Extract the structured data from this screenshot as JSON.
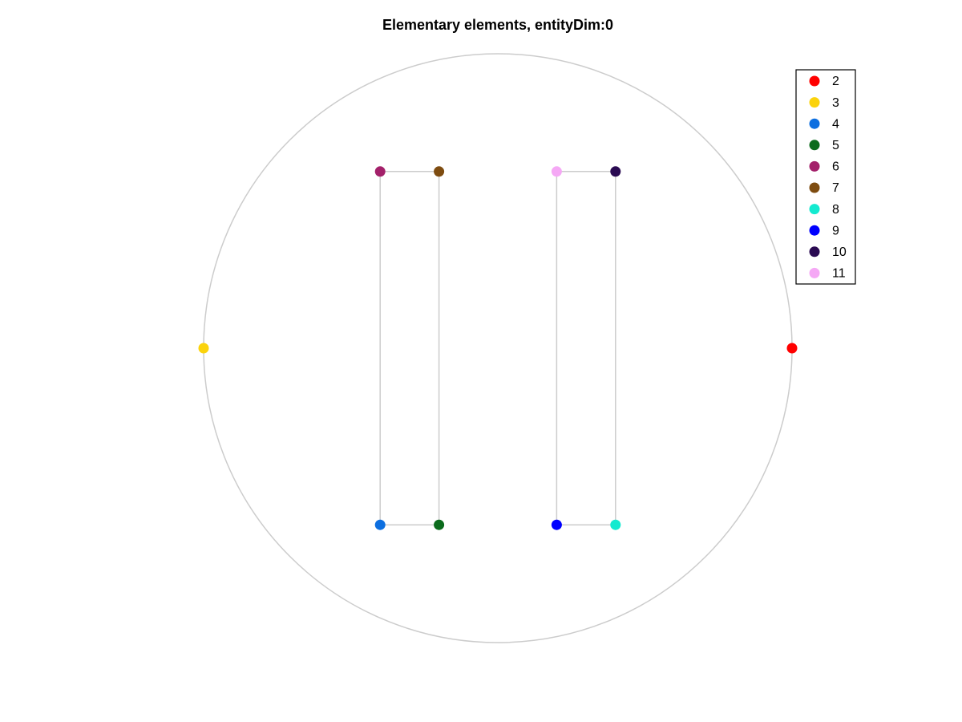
{
  "chart_data": {
    "type": "scatter",
    "title": "Elementary elements, entityDim:0",
    "series": [
      {
        "name": "2",
        "color": "#ff0000",
        "x": [
          1
        ],
        "values": [
          0
        ]
      },
      {
        "name": "3",
        "color": "#fbd30c",
        "x": [
          -1
        ],
        "values": [
          0
        ]
      },
      {
        "name": "4",
        "color": "#0d6fe0",
        "x": [
          -0.4
        ],
        "values": [
          -0.6
        ]
      },
      {
        "name": "5",
        "color": "#0b6b1c",
        "x": [
          -0.2
        ],
        "values": [
          -0.6
        ]
      },
      {
        "name": "6",
        "color": "#a3206a",
        "x": [
          -0.4
        ],
        "values": [
          0.6
        ]
      },
      {
        "name": "7",
        "color": "#7e4c10",
        "x": [
          -0.2
        ],
        "values": [
          0.6
        ]
      },
      {
        "name": "8",
        "color": "#14ead0",
        "x": [
          0.4
        ],
        "values": [
          -0.6
        ]
      },
      {
        "name": "9",
        "color": "#0000ff",
        "x": [
          0.2
        ],
        "values": [
          -0.6
        ]
      },
      {
        "name": "10",
        "color": "#2a0a52",
        "x": [
          0.4
        ],
        "values": [
          0.6
        ]
      },
      {
        "name": "11",
        "color": "#f5a8f5",
        "x": [
          0.2
        ],
        "values": [
          0.6
        ]
      }
    ]
  }
}
